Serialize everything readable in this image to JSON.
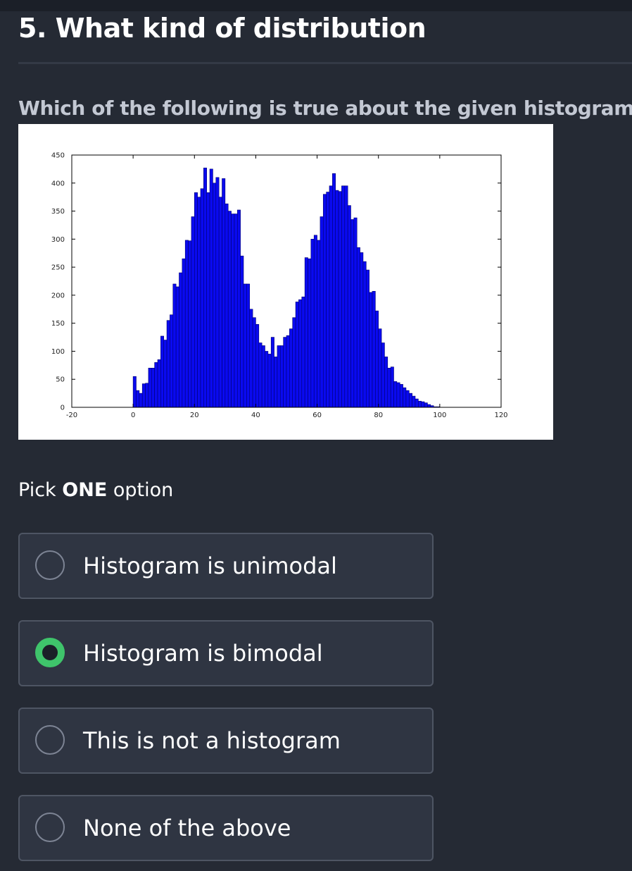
{
  "question": {
    "title": "5. What kind of distribution",
    "prompt": "Which of the following is true about the given histogram?",
    "pick_prefix": "Pick ",
    "pick_emphasis": "ONE",
    "pick_suffix": " option"
  },
  "options": [
    {
      "label": "Histogram is unimodal",
      "selected": false
    },
    {
      "label": "Histogram is bimodal",
      "selected": true
    },
    {
      "label": "This is not a histogram",
      "selected": false
    },
    {
      "label": "None of the above",
      "selected": false
    }
  ],
  "colors": {
    "background": "#252a34",
    "option_bg": "#2f3542",
    "option_border": "#4e5563",
    "selected_radio": "#3fc46b",
    "bar_fill": "#0a0af0",
    "bar_edge": "#000070"
  },
  "chart_data": {
    "type": "bar",
    "title": "",
    "xlabel": "",
    "ylabel": "",
    "xlim": [
      -20,
      120
    ],
    "ylim": [
      0,
      450
    ],
    "xticks": [
      "-20",
      "0",
      "20",
      "40",
      "60",
      "80",
      "100",
      "120"
    ],
    "yticks": [
      "0",
      "50",
      "100",
      "150",
      "200",
      "250",
      "300",
      "350",
      "400",
      "450"
    ],
    "grid": false,
    "legend": "none",
    "bin_start": 0,
    "bin_width": 1,
    "values": [
      55,
      30,
      25,
      42,
      43,
      70,
      70,
      80,
      85,
      127,
      120,
      155,
      165,
      220,
      215,
      240,
      265,
      298,
      297,
      340,
      383,
      375,
      390,
      427,
      383,
      425,
      400,
      410,
      375,
      408,
      363,
      350,
      345,
      345,
      352,
      270,
      220,
      220,
      175,
      160,
      148,
      115,
      110,
      100,
      95,
      125,
      90,
      110,
      110,
      125,
      128,
      140,
      160,
      188,
      192,
      197,
      267,
      265,
      300,
      307,
      298,
      340,
      380,
      384,
      395,
      417,
      387,
      385,
      395,
      395,
      360,
      335,
      338,
      285,
      276,
      260,
      245,
      205,
      207,
      172,
      140,
      115,
      90,
      70,
      72,
      46,
      44,
      41,
      35,
      30,
      25,
      20,
      15,
      11,
      10,
      8,
      5,
      3,
      1,
      1
    ]
  }
}
